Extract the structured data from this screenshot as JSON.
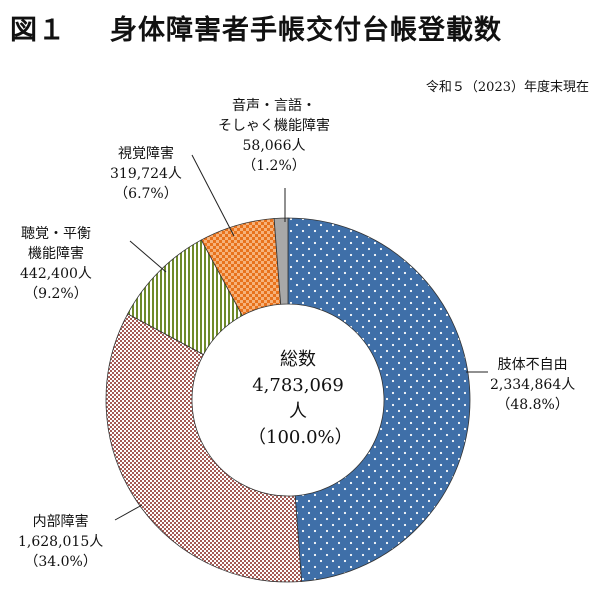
{
  "figure": {
    "number": "図１",
    "title": "身体障害者手帳交付台帳登載数",
    "subtitle": "令和５（2023）年度末現在"
  },
  "center": {
    "title": "総数",
    "total": "4,783,069人",
    "percent": "（100.0%）"
  },
  "labels": {
    "limb": {
      "name": "肢体不自由",
      "count": "2,334,864人",
      "pct": "（48.8%）"
    },
    "internal": {
      "name": "内部障害",
      "count": "1,628,015人",
      "pct": "（34.0%）"
    },
    "hearing": {
      "name1": "聴覚・平衡",
      "name2": "機能障害",
      "count": "442,400人",
      "pct": "（9.2%）"
    },
    "visual": {
      "name": "視覚障害",
      "count": "319,724人",
      "pct": "（6.7%）"
    },
    "speech": {
      "name1": "音声・言語・",
      "name2": "そしゃく機能障害",
      "count": "58,066人",
      "pct": "（1.2%）"
    }
  },
  "chart_data": {
    "type": "pie",
    "style": "donut",
    "total": 4783069,
    "slices": [
      {
        "label": "肢体不自由",
        "value": 2334864,
        "percent": 48.8,
        "color": "#3f6fa8",
        "pattern": "dots"
      },
      {
        "label": "内部障害",
        "value": 1628015,
        "percent": 34.0,
        "color": "#a45a55",
        "pattern": "checker"
      },
      {
        "label": "聴覚・平衡機能障害",
        "value": 442400,
        "percent": 9.2,
        "color": "#6f8a2a",
        "pattern": "vertical-stripes"
      },
      {
        "label": "視覚障害",
        "value": 319724,
        "percent": 6.7,
        "color": "#e8721c",
        "pattern": "checker"
      },
      {
        "label": "音声・言語・そしゃく機能障害",
        "value": 58066,
        "percent": 1.2,
        "color": "#a8a8a8",
        "pattern": "solid"
      }
    ]
  }
}
